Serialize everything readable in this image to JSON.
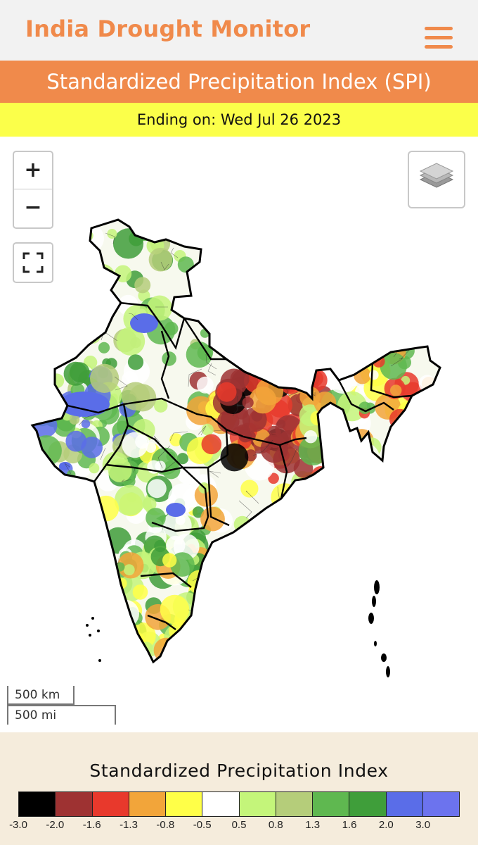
{
  "header": {
    "title": "India Drought Monitor",
    "menu_icon": "hamburger-menu-icon",
    "accent_color": "#f08a4b"
  },
  "index_title": "Standardized Precipitation Index (SPI)",
  "date_line": "Ending on: Wed Jul 26 2023",
  "map_controls": {
    "zoom_in": "+",
    "zoom_out": "−",
    "fullscreen_icon": "fullscreen-icon",
    "layers_icon": "layers-icon"
  },
  "scale": {
    "km": "500 km",
    "mi": "500 mi"
  },
  "legend": {
    "title": "Standardized Precipitation Index",
    "colors": [
      "#000000",
      "#9e3232",
      "#e8392c",
      "#f2a53a",
      "#ffff48",
      "#ffffff",
      "#c4f57a",
      "#b5cd7a",
      "#5fb850",
      "#3f9e3a",
      "#5a6de8",
      "#6c73ee"
    ],
    "ticks": [
      "-3.0",
      "-2.0",
      "-1.6",
      "-1.3",
      "-0.8",
      "-0.5",
      "0.5",
      "0.8",
      "1.3",
      "1.6",
      "2.0",
      "3.0"
    ]
  }
}
